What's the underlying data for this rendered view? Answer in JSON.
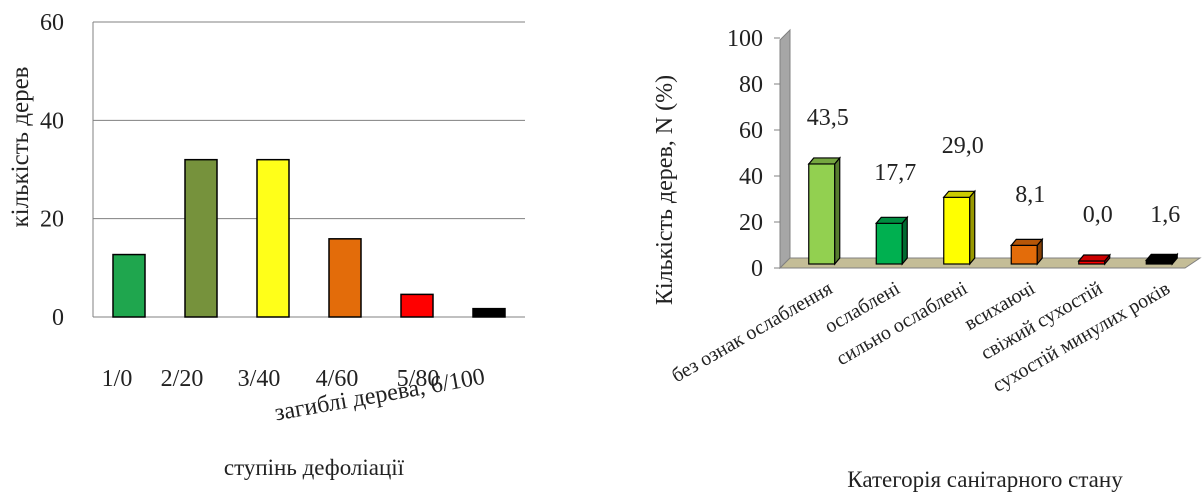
{
  "chart_data": [
    {
      "type": "bar",
      "categories": [
        "1/0",
        "2/20",
        "3/40",
        "4/60",
        "5/80",
        "загиблі дерева, 6/100"
      ],
      "values": [
        12.7,
        32,
        32,
        15.9,
        4.6,
        1.7
      ],
      "colors": [
        "#1fa64e",
        "#76923c",
        "#ffff19",
        "#e36c0a",
        "#ff0000",
        "#000000"
      ],
      "ylim": [
        0,
        60
      ],
      "yticks": [
        "0",
        "20",
        "40",
        "60"
      ],
      "ylabel": "кількість дерев",
      "xlabel": "ступінь дефоліації",
      "grid": true
    },
    {
      "type": "bar",
      "categories": [
        "без ознак ослаблення",
        "ослаблені",
        "сильно ослаблені",
        "всихаючі",
        "свіжий сухостій",
        "сухостій минулих років"
      ],
      "values": [
        43.5,
        17.7,
        29.0,
        8.1,
        0.0,
        1.6
      ],
      "data_labels": [
        "43,5",
        "17,7",
        "29,0",
        "8,1",
        "0,0",
        "1,6"
      ],
      "colors": [
        "#92d050",
        "#00b050",
        "#ffff00",
        "#e36c0a",
        "#ff0000",
        "#000000"
      ],
      "ylim": [
        0,
        100
      ],
      "yticks": [
        "0",
        "20",
        "40",
        "60",
        "80",
        "100"
      ],
      "ylabel": "Кількість дерев, N (%)",
      "xlabel": "Категорія санітарного стану",
      "grid": false
    }
  ]
}
